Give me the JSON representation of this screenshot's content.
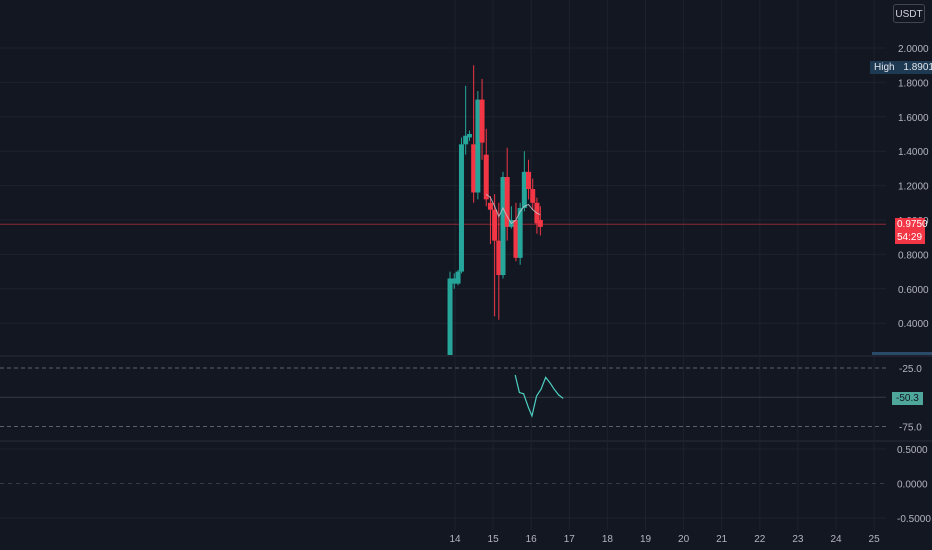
{
  "currency_label": "USDT",
  "high_marker": {
    "label": "High",
    "value": "1.8901"
  },
  "last_price": {
    "value": "0.9750",
    "countdown": "54:29",
    "color": "#f23645"
  },
  "rsi_badge": {
    "value": "-50.3",
    "color": "#4fa69a"
  },
  "colors": {
    "background": "#131722",
    "up": "#26a69a",
    "down": "#f23645",
    "grid": "#1e222d",
    "oscillator": "#4dd0c2"
  },
  "chart_data": [
    {
      "type": "candlestick",
      "pane": "price",
      "quote_currency": "USDT",
      "x_tick_labels": [
        "14",
        "15",
        "16",
        "17",
        "18",
        "19",
        "20",
        "21",
        "22",
        "23",
        "24",
        "25"
      ],
      "y_tick_labels": [
        "2.0000",
        "1.8000",
        "1.6000",
        "1.4000",
        "1.2000",
        "1.0000",
        "0.8000",
        "0.6000",
        "0.4000"
      ],
      "ylim": [
        0.22,
        2.1
      ],
      "xlim": [
        13.35,
        25.25
      ],
      "grid": true,
      "candles": [
        {
          "t": 13.87,
          "o": 0.2,
          "h": 0.7,
          "l": 0.2,
          "c": 0.66
        },
        {
          "t": 13.98,
          "o": 0.63,
          "h": 0.69,
          "l": 0.6,
          "c": 0.66
        },
        {
          "t": 14.08,
          "o": 0.63,
          "h": 0.71,
          "l": 0.62,
          "c": 0.7
        },
        {
          "t": 14.17,
          "o": 0.7,
          "h": 1.48,
          "l": 0.69,
          "c": 1.44
        },
        {
          "t": 14.28,
          "o": 1.44,
          "h": 1.78,
          "l": 1.38,
          "c": 1.49
        },
        {
          "t": 14.38,
          "o": 1.48,
          "h": 1.52,
          "l": 1.46,
          "c": 1.5
        },
        {
          "t": 14.49,
          "o": 1.44,
          "h": 1.9,
          "l": 1.1,
          "c": 1.16
        },
        {
          "t": 14.6,
          "o": 1.16,
          "h": 1.75,
          "l": 1.12,
          "c": 1.7
        },
        {
          "t": 14.71,
          "o": 1.7,
          "h": 1.82,
          "l": 1.35,
          "c": 1.45
        },
        {
          "t": 14.82,
          "o": 1.38,
          "h": 1.53,
          "l": 1.08,
          "c": 1.12
        },
        {
          "t": 14.93,
          "o": 1.1,
          "h": 1.14,
          "l": 0.86,
          "c": 1.06
        },
        {
          "t": 15.04,
          "o": 1.06,
          "h": 1.15,
          "l": 0.44,
          "c": 0.88
        },
        {
          "t": 15.15,
          "o": 0.88,
          "h": 1.1,
          "l": 0.42,
          "c": 0.68
        },
        {
          "t": 15.26,
          "o": 0.68,
          "h": 1.28,
          "l": 0.66,
          "c": 1.25
        },
        {
          "t": 15.37,
          "o": 1.25,
          "h": 1.42,
          "l": 0.88,
          "c": 0.96
        },
        {
          "t": 15.48,
          "o": 0.96,
          "h": 1.08,
          "l": 0.95,
          "c": 1.0
        },
        {
          "t": 15.6,
          "o": 1.0,
          "h": 1.1,
          "l": 0.76,
          "c": 0.78
        },
        {
          "t": 15.71,
          "o": 0.78,
          "h": 1.1,
          "l": 0.74,
          "c": 1.07
        },
        {
          "t": 15.82,
          "o": 1.07,
          "h": 1.4,
          "l": 1.05,
          "c": 1.28
        },
        {
          "t": 15.93,
          "o": 1.28,
          "h": 1.35,
          "l": 1.12,
          "c": 1.18
        },
        {
          "t": 16.04,
          "o": 1.18,
          "h": 1.24,
          "l": 1.06,
          "c": 1.1
        },
        {
          "t": 16.15,
          "o": 1.1,
          "h": 1.13,
          "l": 0.92,
          "c": 0.98
        },
        {
          "t": 16.24,
          "o": 1.0,
          "h": 1.08,
          "l": 0.91,
          "c": 0.96
        }
      ],
      "moving_average": [
        {
          "t": 14.82,
          "v": 1.15
        },
        {
          "t": 14.93,
          "v": 1.13
        },
        {
          "t": 15.04,
          "v": 1.08
        },
        {
          "t": 15.15,
          "v": 1.02
        },
        {
          "t": 15.26,
          "v": 1.07
        },
        {
          "t": 15.37,
          "v": 1.02
        },
        {
          "t": 15.48,
          "v": 0.98
        },
        {
          "t": 15.6,
          "v": 1.0
        },
        {
          "t": 15.71,
          "v": 1.05
        },
        {
          "t": 15.82,
          "v": 1.08
        },
        {
          "t": 15.93,
          "v": 1.09
        },
        {
          "t": 16.04,
          "v": 1.06
        },
        {
          "t": 16.15,
          "v": 1.04
        },
        {
          "t": 16.24,
          "v": 1.03
        }
      ]
    },
    {
      "type": "line",
      "pane": "oscillator",
      "y_tick_labels": [
        "-25.0",
        "-75.0"
      ],
      "reference_levels": [
        -25,
        -50,
        -75
      ],
      "ylim": [
        -90,
        -10
      ],
      "series": [
        {
          "x": [
            15.58,
            15.69,
            15.8,
            15.93,
            16.02,
            16.14,
            16.26,
            16.38,
            16.5,
            16.6,
            16.72,
            16.84
          ],
          "values": [
            -31,
            -46,
            -47,
            -59,
            -66,
            -49,
            -43,
            -33,
            -38,
            -43,
            -48,
            -51
          ]
        }
      ]
    },
    {
      "type": "line",
      "pane": "lower",
      "y_tick_labels": [
        "0.5000",
        "0.0000",
        "-0.5000"
      ],
      "ylim": [
        -0.75,
        0.75
      ],
      "series": []
    }
  ]
}
